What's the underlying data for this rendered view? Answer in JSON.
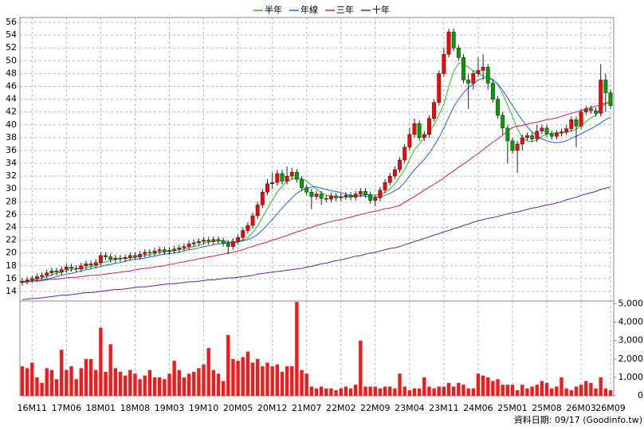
{
  "chart_data": {
    "type": "candlestick",
    "categories": [
      null,
      null,
      "16M11",
      null,
      null,
      null,
      null,
      null,
      null,
      "17M06",
      null,
      null,
      null,
      null,
      null,
      null,
      "18M01",
      null,
      null,
      null,
      null,
      null,
      null,
      "18M08",
      null,
      null,
      null,
      null,
      null,
      null,
      "19M03",
      null,
      null,
      null,
      null,
      null,
      null,
      "19M10",
      null,
      null,
      null,
      null,
      null,
      null,
      "20M05",
      null,
      null,
      null,
      null,
      null,
      null,
      "20M12",
      null,
      null,
      null,
      null,
      null,
      null,
      "21M07",
      null,
      null,
      null,
      null,
      null,
      null,
      "22M02",
      null,
      null,
      null,
      null,
      null,
      null,
      "22M09",
      null,
      null,
      null,
      null,
      null,
      null,
      "23M04",
      null,
      null,
      null,
      null,
      null,
      null,
      "23M11",
      null,
      null,
      null,
      null,
      null,
      null,
      "24M06",
      null,
      null,
      null,
      null,
      null,
      null,
      "25M01",
      null,
      null,
      null,
      null,
      null,
      null,
      "25M08",
      null,
      null,
      null,
      null,
      null,
      null,
      "26M03",
      null,
      null,
      null,
      null,
      null,
      "26M09"
    ],
    "open": [
      15.4,
      15.6,
      15.8,
      16.0,
      16.3,
      16.5,
      16.9,
      17.2,
      17.0,
      17.4,
      17.8,
      17.6,
      17.5,
      18.0,
      18.3,
      18.1,
      18.5,
      19.6,
      19.4,
      19.0,
      19.2,
      19.1,
      19.3,
      19.6,
      19.4,
      19.8,
      20.1,
      20.0,
      20.3,
      20.5,
      20.2,
      20.4,
      20.6,
      20.8,
      21.0,
      21.4,
      21.6,
      21.8,
      22.0,
      21.8,
      22.1,
      21.9,
      21.5,
      21.0,
      21.8,
      22.4,
      23.5,
      24.3,
      25.8,
      27.5,
      29.5,
      30.8,
      31.0,
      32.4,
      31.2,
      32.0,
      32.6,
      31.5,
      30.2,
      29.5,
      28.8,
      29.2,
      28.5,
      28.4,
      28.9,
      28.6,
      28.8,
      29.0,
      28.7,
      29.2,
      29.6,
      29.1,
      28.2,
      28.6,
      29.8,
      31.0,
      32.0,
      33.0,
      34.5,
      36.5,
      38.5,
      40.2,
      38.0,
      38.5,
      41.0,
      43.5,
      48.0,
      51.0,
      54.5,
      52.0,
      50.5,
      47.0,
      46.5,
      48.0,
      48.5,
      49.0,
      46.5,
      44.0,
      41.5,
      39.5,
      37.5,
      36.0,
      37.0,
      38.0,
      38.3,
      37.8,
      39.0,
      39.5,
      38.6,
      38.2,
      38.7,
      38.9,
      39.4,
      40.8,
      39.8,
      42.0,
      42.5,
      42.2,
      41.8,
      47.0,
      45.0
    ],
    "high": [
      16.1,
      16.3,
      16.5,
      16.8,
      17.0,
      17.4,
      17.7,
      17.7,
      17.9,
      18.3,
      18.3,
      18.1,
      18.5,
      18.8,
      18.8,
      19.0,
      20.1,
      20.1,
      19.9,
      19.7,
      19.7,
      19.8,
      20.1,
      20.1,
      20.3,
      20.6,
      20.6,
      20.8,
      21.0,
      21.0,
      20.9,
      21.1,
      21.3,
      21.5,
      21.9,
      22.1,
      22.3,
      22.5,
      22.5,
      22.6,
      22.6,
      22.4,
      22.0,
      22.3,
      22.9,
      24.0,
      24.8,
      26.3,
      28.0,
      30.0,
      31.5,
      32.5,
      33.0,
      33.0,
      33.5,
      33.3,
      33.1,
      32.0,
      30.7,
      30.0,
      29.7,
      29.7,
      29.0,
      29.4,
      29.4,
      29.3,
      29.5,
      29.5,
      29.7,
      30.1,
      30.1,
      29.6,
      29.1,
      30.3,
      31.5,
      32.5,
      33.5,
      35.0,
      37.0,
      39.5,
      41.0,
      40.7,
      39.0,
      41.5,
      44.0,
      48.5,
      52.0,
      55.0,
      55.0,
      52.5,
      51.0,
      48.0,
      48.5,
      50.5,
      51.0,
      49.5,
      47.0,
      44.5,
      42.0,
      40.0,
      38.0,
      37.5,
      38.5,
      38.8,
      38.8,
      40.0,
      40.0,
      40.0,
      39.1,
      39.2,
      39.4,
      39.9,
      41.3,
      41.3,
      42.5,
      43.0,
      43.0,
      42.7,
      49.5,
      48.0,
      45.5
    ],
    "low": [
      14.9,
      15.1,
      15.3,
      15.5,
      15.8,
      16.0,
      16.4,
      16.5,
      16.5,
      16.9,
      17.1,
      17.0,
      17.0,
      17.5,
      17.6,
      17.6,
      18.0,
      18.9,
      18.5,
      18.5,
      18.6,
      18.6,
      18.8,
      18.9,
      18.9,
      19.3,
      19.5,
      19.5,
      19.8,
      19.7,
      19.7,
      19.9,
      20.1,
      20.3,
      20.5,
      20.9,
      21.1,
      21.3,
      21.3,
      21.3,
      21.4,
      21.0,
      19.8,
      20.5,
      21.3,
      21.9,
      23.0,
      23.8,
      25.3,
      27.0,
      29.0,
      30.0,
      30.5,
      30.7,
      30.7,
      31.5,
      31.0,
      29.7,
      29.0,
      26.8,
      28.3,
      27.5,
      27.9,
      27.9,
      28.1,
      28.1,
      28.3,
      28.2,
      28.2,
      28.7,
      28.6,
      27.7,
      27.3,
      28.1,
      29.3,
      30.5,
      31.5,
      32.5,
      34.0,
      36.0,
      38.0,
      37.5,
      37.5,
      38.0,
      40.5,
      43.0,
      47.5,
      50.5,
      51.5,
      50.0,
      46.5,
      42.5,
      45.5,
      47.5,
      47.0,
      45.5,
      43.5,
      41.0,
      38.5,
      34.0,
      35.5,
      32.5,
      36.0,
      37.5,
      37.3,
      37.3,
      38.5,
      38.1,
      37.7,
      37.7,
      38.2,
      38.4,
      38.9,
      36.5,
      39.3,
      41.5,
      41.7,
      41.3,
      41.3,
      42.0,
      42.5
    ],
    "close": [
      15.6,
      15.8,
      16.0,
      16.3,
      16.5,
      16.9,
      17.2,
      17.0,
      17.4,
      17.8,
      17.6,
      17.5,
      18.0,
      18.3,
      18.1,
      18.5,
      19.6,
      19.4,
      19.0,
      19.2,
      19.1,
      19.3,
      19.6,
      19.4,
      19.8,
      20.1,
      20.0,
      20.3,
      20.5,
      20.2,
      20.4,
      20.6,
      20.8,
      21.0,
      21.4,
      21.6,
      21.8,
      22.0,
      21.8,
      22.1,
      21.9,
      21.5,
      21.0,
      21.8,
      22.4,
      23.5,
      24.3,
      25.8,
      27.5,
      29.5,
      30.8,
      31.0,
      32.4,
      31.2,
      32.0,
      32.6,
      31.5,
      30.2,
      29.5,
      28.8,
      29.2,
      28.5,
      28.4,
      28.9,
      28.6,
      28.8,
      29.0,
      28.7,
      29.2,
      29.6,
      29.1,
      28.2,
      28.6,
      29.8,
      31.0,
      32.0,
      33.0,
      34.5,
      36.5,
      38.5,
      40.2,
      38.0,
      38.5,
      41.0,
      43.5,
      48.0,
      51.0,
      54.5,
      52.0,
      50.5,
      47.0,
      46.5,
      48.0,
      48.5,
      49.0,
      46.5,
      44.0,
      41.5,
      39.5,
      37.5,
      36.0,
      37.0,
      38.0,
      38.3,
      37.8,
      39.0,
      39.5,
      38.6,
      38.2,
      38.7,
      38.9,
      39.4,
      40.8,
      39.8,
      42.0,
      42.5,
      42.2,
      41.8,
      47.0,
      45.0,
      43.0
    ],
    "up_color": "#ff0000",
    "down_color": "#00a000",
    "ylim": [
      12.5,
      56.75
    ],
    "yticks": [
      14,
      16,
      18,
      20,
      22,
      24,
      26,
      28,
      30,
      32,
      34,
      36,
      38,
      40,
      42,
      44,
      46,
      48,
      50,
      52,
      54,
      56
    ],
    "grid": true,
    "series": [
      {
        "name": "半年",
        "color": "#22c022",
        "values": [
          15.5,
          15.6,
          15.7,
          15.9,
          16.1,
          16.3,
          16.6,
          16.8,
          17.0,
          17.2,
          17.4,
          17.5,
          17.6,
          17.7,
          17.9,
          18.0,
          18.4,
          18.6,
          18.8,
          19.0,
          19.1,
          19.2,
          19.2,
          19.3,
          19.4,
          19.6,
          19.7,
          19.9,
          20.1,
          20.2,
          20.3,
          20.3,
          20.5,
          20.6,
          20.8,
          21.0,
          21.2,
          21.5,
          21.7,
          21.8,
          21.9,
          21.9,
          21.7,
          21.7,
          21.8,
          22.0,
          22.4,
          23.2,
          24.2,
          25.6,
          26.9,
          28.2,
          29.5,
          30.4,
          31.2,
          31.5,
          31.8,
          31.6,
          31.2,
          30.6,
          30.0,
          29.4,
          29.0,
          28.9,
          28.8,
          28.7,
          28.7,
          28.8,
          28.9,
          29.0,
          29.1,
          29.1,
          29.0,
          29.2,
          29.4,
          30.0,
          30.8,
          31.9,
          33.0,
          34.6,
          36.1,
          37.0,
          38.0,
          38.8,
          40.0,
          41.6,
          43.2,
          46.0,
          48.3,
          49.6,
          49.5,
          49.0,
          48.4,
          48.0,
          47.6,
          47.5,
          47.1,
          46.3,
          44.8,
          43.1,
          41.3,
          39.4,
          38.0,
          37.5,
          37.4,
          37.6,
          38.2,
          38.6,
          38.7,
          38.8,
          38.8,
          38.8,
          39.1,
          39.3,
          39.9,
          40.5,
          41.1,
          41.5,
          42.6,
          43.3,
          43.6
        ]
      },
      {
        "name": "年線",
        "color": "#2060e0",
        "values": [
          15.4,
          15.5,
          15.6,
          15.7,
          15.8,
          15.9,
          16.1,
          16.3,
          16.5,
          16.7,
          16.8,
          17.0,
          17.2,
          17.4,
          17.5,
          17.7,
          17.9,
          18.1,
          18.2,
          18.4,
          18.5,
          18.7,
          18.9,
          19.0,
          19.1,
          19.2,
          19.4,
          19.5,
          19.7,
          19.8,
          19.9,
          20.0,
          20.1,
          20.3,
          20.5,
          20.6,
          20.8,
          21.0,
          21.1,
          21.3,
          21.4,
          21.5,
          21.6,
          21.6,
          21.7,
          21.9,
          22.1,
          22.4,
          22.9,
          23.6,
          24.4,
          25.2,
          26.1,
          27.0,
          27.8,
          28.6,
          29.3,
          29.8,
          30.1,
          30.3,
          30.3,
          30.1,
          29.9,
          29.7,
          29.6,
          29.4,
          29.2,
          29.0,
          28.9,
          28.9,
          28.9,
          28.8,
          28.7,
          28.8,
          29.0,
          29.3,
          29.7,
          30.2,
          31.0,
          32.0,
          33.0,
          33.8,
          34.6,
          35.6,
          36.7,
          38.0,
          39.5,
          41.2,
          42.8,
          44.0,
          45.0,
          45.8,
          46.4,
          47.0,
          47.3,
          47.3,
          47.0,
          46.4,
          45.4,
          44.2,
          43.0,
          41.8,
          40.7,
          39.7,
          38.9,
          38.3,
          37.8,
          37.5,
          37.3,
          37.2,
          37.3,
          37.5,
          37.9,
          38.2,
          38.6,
          39.0,
          39.4,
          39.8,
          40.3,
          40.8,
          41.2
        ]
      },
      {
        "name": "三年",
        "color": "#d0204a",
        "values": [
          15.4,
          15.5,
          15.6,
          15.6,
          15.7,
          15.8,
          15.9,
          15.9,
          16.0,
          16.1,
          16.2,
          16.2,
          16.3,
          16.4,
          16.5,
          16.5,
          16.6,
          16.7,
          16.8,
          16.9,
          17.0,
          17.1,
          17.2,
          17.4,
          17.5,
          17.6,
          17.7,
          17.8,
          17.9,
          18.0,
          18.2,
          18.3,
          18.5,
          18.6,
          18.8,
          18.9,
          19.1,
          19.2,
          19.4,
          19.5,
          19.7,
          19.8,
          20.0,
          20.1,
          20.3,
          20.5,
          20.8,
          21.0,
          21.3,
          21.5,
          21.7,
          22.0,
          22.2,
          22.5,
          22.7,
          23.0,
          23.3,
          23.5,
          23.8,
          24.0,
          24.3,
          24.5,
          24.7,
          24.9,
          25.1,
          25.2,
          25.4,
          25.6,
          25.8,
          26.0,
          26.2,
          26.4,
          26.5,
          26.7,
          26.9,
          27.0,
          27.2,
          27.4,
          27.9,
          28.4,
          28.8,
          29.3,
          29.8,
          30.3,
          30.7,
          31.2,
          31.7,
          32.3,
          32.8,
          33.4,
          33.9,
          34.4,
          35.0,
          35.5,
          36.1,
          36.7,
          37.3,
          37.8,
          38.4,
          39.0,
          39.6,
          39.8,
          39.9,
          40.1,
          40.3,
          40.4,
          40.6,
          40.8,
          40.9,
          41.1,
          41.3,
          41.6,
          41.8,
          42.0,
          42.2,
          42.5,
          42.7,
          42.9,
          43.1,
          43.4,
          43.6
        ]
      },
      {
        "name": "十年",
        "color": "#6a1fa0",
        "values": [
          12.7,
          12.8,
          12.9,
          12.9,
          13.0,
          13.1,
          13.2,
          13.3,
          13.4,
          13.4,
          13.5,
          13.6,
          13.7,
          13.8,
          13.8,
          13.9,
          14.0,
          14.1,
          14.2,
          14.3,
          14.3,
          14.4,
          14.5,
          14.6,
          14.7,
          14.7,
          14.8,
          14.9,
          15.0,
          15.1,
          15.2,
          15.2,
          15.3,
          15.4,
          15.5,
          15.5,
          15.6,
          15.7,
          15.8,
          15.8,
          15.9,
          16.0,
          16.1,
          16.1,
          16.2,
          16.3,
          16.4,
          16.5,
          16.7,
          16.8,
          16.9,
          17.0,
          17.1,
          17.2,
          17.3,
          17.4,
          17.5,
          17.6,
          17.8,
          17.9,
          18.1,
          18.3,
          18.4,
          18.6,
          18.8,
          18.9,
          19.1,
          19.3,
          19.5,
          19.6,
          19.8,
          20.0,
          20.1,
          20.3,
          20.5,
          20.7,
          20.8,
          21.0,
          21.3,
          21.5,
          21.8,
          22.0,
          22.3,
          22.5,
          22.8,
          23.0,
          23.3,
          23.5,
          23.8,
          24.0,
          24.3,
          24.5,
          24.8,
          25.0,
          25.2,
          25.4,
          25.5,
          25.7,
          25.9,
          26.1,
          26.3,
          26.4,
          26.6,
          26.8,
          27.0,
          27.1,
          27.3,
          27.5,
          27.6,
          27.8,
          28.0,
          28.3,
          28.5,
          28.7,
          29.0,
          29.2,
          29.4,
          29.6,
          29.9,
          30.1,
          30.3
        ]
      }
    ],
    "volume": {
      "color": "#ee1c1c",
      "values": [
        1600,
        1500,
        1800,
        1000,
        700,
        1500,
        1400,
        900,
        2500,
        1400,
        1600,
        900,
        1500,
        2000,
        2000,
        1400,
        3700,
        1300,
        2800,
        1500,
        1300,
        1100,
        1400,
        1200,
        900,
        1100,
        1400,
        1000,
        1000,
        900,
        1200,
        1900,
        1400,
        1000,
        1200,
        1300,
        1500,
        1700,
        2600,
        1400,
        1200,
        800,
        3300,
        2000,
        1900,
        2100,
        2400,
        1800,
        2000,
        1600,
        1800,
        1600,
        1700,
        1300,
        1600,
        1600,
        5100,
        1400,
        1200,
        500,
        400,
        500,
        400,
        400,
        300,
        400,
        500,
        400,
        600,
        3000,
        500,
        500,
        500,
        400,
        500,
        500,
        400,
        1200,
        500,
        300,
        400,
        400,
        1000,
        500,
        400,
        500,
        500,
        700,
        500,
        700,
        600,
        400,
        400,
        1200,
        1100,
        1000,
        800,
        900,
        600,
        600,
        600,
        300,
        600,
        400,
        500,
        600,
        800,
        700,
        400,
        500,
        1000,
        400,
        300,
        500,
        600,
        800,
        700,
        400,
        1000,
        400,
        300
      ],
      "ylim": [
        0,
        5150
      ],
      "yticks": [
        0,
        {
          "value": 1000,
          "label": "1,000"
        },
        {
          "value": 2000,
          "label": "2,000"
        },
        {
          "value": 3000,
          "label": "3,000"
        },
        {
          "value": 4000,
          "label": "4,000"
        },
        {
          "value": 5000,
          "label": "5,000"
        }
      ]
    },
    "source": "資料日期: 09/17 (Goodinfo.tw)"
  }
}
